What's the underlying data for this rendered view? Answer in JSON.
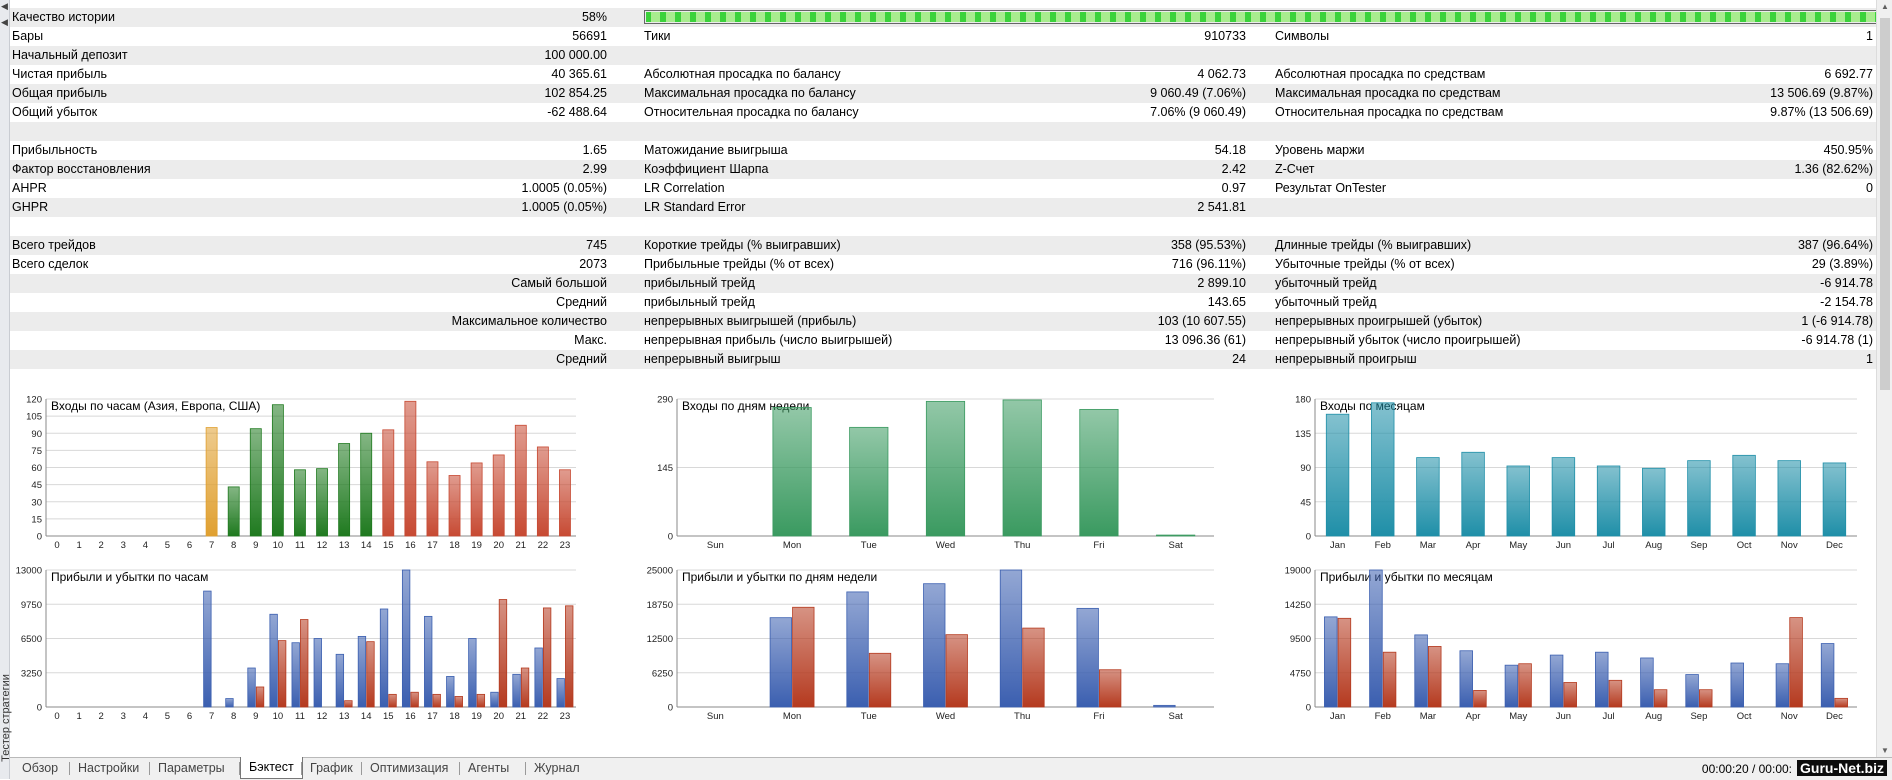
{
  "window": {
    "vertical_title": "Тестер стратегии"
  },
  "quality": {
    "label": "Качество истории",
    "value": "58%",
    "fraction": 0.58
  },
  "rows": [
    {
      "c1": [
        "Бары",
        "56691"
      ],
      "c2": [
        "Тики",
        "910733"
      ],
      "c3": [
        "Символы",
        "1"
      ]
    },
    {
      "c1": [
        "Начальный депозит",
        "100 000.00"
      ],
      "c2": [
        "",
        ""
      ],
      "c3": [
        "",
        ""
      ]
    },
    {
      "c1": [
        "Чистая прибыль",
        "40 365.61"
      ],
      "c2": [
        "Абсолютная просадка по балансу",
        "4 062.73"
      ],
      "c3": [
        "Абсолютная просадка по средствам",
        "6 692.77"
      ]
    },
    {
      "c1": [
        "Общая прибыль",
        "102 854.25"
      ],
      "c2": [
        "Максимальная просадка по балансу",
        "9 060.49 (7.06%)"
      ],
      "c3": [
        "Максимальная просадка по средствам",
        "13 506.69 (9.87%)"
      ]
    },
    {
      "c1": [
        "Общий убыток",
        "-62 488.64"
      ],
      "c2": [
        "Относительная просадка по балансу",
        "7.06% (9 060.49)"
      ],
      "c3": [
        "Относительная просадка по средствам",
        "9.87% (13 506.69)"
      ]
    },
    {
      "c1": [
        "",
        ""
      ],
      "c2": [
        "",
        ""
      ],
      "c3": [
        "",
        ""
      ]
    },
    {
      "c1": [
        "Прибыльность",
        "1.65"
      ],
      "c2": [
        "Матожидание выигрыша",
        "54.18"
      ],
      "c3": [
        "Уровень маржи",
        "450.95%"
      ]
    },
    {
      "c1": [
        "Фактор восстановления",
        "2.99"
      ],
      "c2": [
        "Коэффициент Шарпа",
        "2.42"
      ],
      "c3": [
        "Z-Счет",
        "1.36 (82.62%)"
      ]
    },
    {
      "c1": [
        "AHPR",
        "1.0005 (0.05%)"
      ],
      "c2": [
        "LR Correlation",
        "0.97"
      ],
      "c3": [
        "Результат OnTester",
        "0"
      ]
    },
    {
      "c1": [
        "GHPR",
        "1.0005 (0.05%)"
      ],
      "c2": [
        "LR Standard Error",
        "2 541.81"
      ],
      "c3": [
        "",
        ""
      ]
    },
    {
      "c1": [
        "",
        ""
      ],
      "c2": [
        "",
        ""
      ],
      "c3": [
        "",
        ""
      ]
    },
    {
      "c1": [
        "Всего трейдов",
        "745"
      ],
      "c2": [
        "Короткие трейды (% выигравших)",
        "358 (95.53%)"
      ],
      "c3": [
        "Длинные трейды (% выигравших)",
        "387 (96.64%)"
      ]
    },
    {
      "c1": [
        "Всего сделок",
        "2073"
      ],
      "c2": [
        "Прибыльные трейды (% от всех)",
        "716 (96.11%)"
      ],
      "c3": [
        "Убыточные трейды (% от всех)",
        "29 (3.89%)"
      ]
    },
    {
      "c1": [
        "",
        "Самый большой"
      ],
      "c2": [
        "прибыльный трейд",
        "2 899.10"
      ],
      "c3": [
        "убыточный трейд",
        "-6 914.78"
      ]
    },
    {
      "c1": [
        "",
        "Средний"
      ],
      "c2": [
        "прибыльный трейд",
        "143.65"
      ],
      "c3": [
        "убыточный трейд",
        "-2 154.78"
      ]
    },
    {
      "c1": [
        "",
        "Максимальное количество"
      ],
      "c2": [
        "непрерывных выигрышей (прибыль)",
        "103 (10 607.55)"
      ],
      "c3": [
        "непрерывных проигрышей (убыток)",
        "1 (-6 914.78)"
      ]
    },
    {
      "c1": [
        "",
        "Макс."
      ],
      "c2": [
        "непрерывная прибыль (число выигрышей)",
        "13 096.36 (61)"
      ],
      "c3": [
        "непрерывный убыток (число проигрышей)",
        "-6 914.78 (1)"
      ]
    },
    {
      "c1": [
        "",
        "Средний"
      ],
      "c2": [
        "непрерывный выигрыш",
        "24"
      ],
      "c3": [
        "непрерывный проигрыш",
        "1"
      ]
    },
    {
      "c1": [
        "",
        ""
      ],
      "c2": [
        "",
        ""
      ],
      "c3": [
        "",
        ""
      ]
    }
  ],
  "chart_data": [
    {
      "type": "bar",
      "title": "Входы по часам (Азия, Европа, США)",
      "categories": [
        "0",
        "1",
        "2",
        "3",
        "4",
        "5",
        "6",
        "7",
        "8",
        "9",
        "10",
        "11",
        "12",
        "13",
        "14",
        "15",
        "16",
        "17",
        "18",
        "19",
        "20",
        "21",
        "22",
        "23"
      ],
      "values": [
        0,
        0,
        0,
        0,
        0,
        0,
        0,
        95,
        43,
        94,
        115,
        58,
        59,
        81,
        90,
        93,
        118,
        65,
        53,
        64,
        71,
        97,
        78,
        58
      ],
      "yticks": [
        0,
        15,
        30,
        45,
        60,
        75,
        90,
        105,
        120
      ],
      "ylim": [
        0,
        120
      ],
      "colors": [
        "#2e8b2e",
        "#2e8b2e",
        "#2e8b2e",
        "#2e8b2e",
        "#2e8b2e",
        "#2e8b2e",
        "#2e8b2e",
        "#e0a030",
        "#1f7a1f",
        "#1f7a1f",
        "#1f7a1f",
        "#1f7a1f",
        "#1f7a1f",
        "#1f7a1f",
        "#1f7a1f",
        "#c74a33",
        "#c74a33",
        "#c74a33",
        "#c74a33",
        "#c74a33",
        "#c74a33",
        "#c74a33",
        "#c74a33",
        "#c74a33"
      ]
    },
    {
      "type": "bar",
      "title": "Входы по дням недели",
      "categories": [
        "Sun",
        "Mon",
        "Tue",
        "Wed",
        "Thu",
        "Fri",
        "Sat"
      ],
      "values": [
        0,
        272,
        230,
        285,
        288,
        268,
        2
      ],
      "yticks": [
        0,
        145,
        290
      ],
      "ylim": [
        0,
        290
      ],
      "colors": [
        "#3a9a60",
        "#3a9a60",
        "#3a9a60",
        "#3a9a60",
        "#3a9a60",
        "#3a9a60",
        "#3a9a60"
      ]
    },
    {
      "type": "bar",
      "title": "Входы по месяцам",
      "categories": [
        "Jan",
        "Feb",
        "Mar",
        "Apr",
        "May",
        "Jun",
        "Jul",
        "Aug",
        "Sep",
        "Oct",
        "Nov",
        "Dec"
      ],
      "values": [
        160,
        175,
        103,
        110,
        92,
        103,
        92,
        89,
        99,
        106,
        99,
        96
      ],
      "yticks": [
        0,
        45,
        90,
        135,
        180
      ],
      "ylim": [
        0,
        180
      ],
      "colors": [
        "#1f8fa8",
        "#1f8fa8",
        "#1f8fa8",
        "#1f8fa8",
        "#1f8fa8",
        "#1f8fa8",
        "#1f8fa8",
        "#1f8fa8",
        "#1f8fa8",
        "#1f8fa8",
        "#1f8fa8",
        "#1f8fa8"
      ]
    },
    {
      "type": "bar",
      "title": "Прибыли и убытки по часам",
      "categories": [
        "0",
        "1",
        "2",
        "3",
        "4",
        "5",
        "6",
        "7",
        "8",
        "9",
        "10",
        "11",
        "12",
        "13",
        "14",
        "15",
        "16",
        "17",
        "18",
        "19",
        "20",
        "21",
        "22",
        "23"
      ],
      "series": [
        {
          "color": "#3b5fb0",
          "values": [
            0,
            0,
            0,
            0,
            0,
            0,
            0,
            11000,
            800,
            3700,
            8800,
            6100,
            6500,
            5000,
            6700,
            9300,
            13000,
            8600,
            2900,
            6500,
            1400,
            3100,
            5600,
            2700
          ]
        },
        {
          "color": "#b53a1f",
          "values": [
            0,
            0,
            0,
            0,
            0,
            0,
            0,
            0,
            0,
            1900,
            6300,
            8300,
            0,
            600,
            6200,
            1200,
            1400,
            1200,
            1000,
            1200,
            10200,
            3700,
            9400,
            9600
          ]
        }
      ],
      "yticks": [
        0,
        3250,
        6500,
        9750,
        13000
      ],
      "ylim": [
        0,
        13000
      ]
    },
    {
      "type": "bar",
      "title": "Прибыли и убытки по дням недели",
      "categories": [
        "Sun",
        "Mon",
        "Tue",
        "Wed",
        "Thu",
        "Fri",
        "Sat"
      ],
      "series": [
        {
          "color": "#3b5fb0",
          "values": [
            0,
            16300,
            21000,
            22500,
            25000,
            18000,
            300
          ]
        },
        {
          "color": "#b53a1f",
          "values": [
            0,
            18200,
            9800,
            13200,
            14400,
            6800,
            0
          ]
        }
      ],
      "yticks": [
        0,
        6250,
        12500,
        18750,
        25000
      ],
      "ylim": [
        0,
        25000
      ]
    },
    {
      "type": "bar",
      "title": "Прибыли и убытки по месяцам",
      "categories": [
        "Jan",
        "Feb",
        "Mar",
        "Apr",
        "May",
        "Jun",
        "Jul",
        "Aug",
        "Sep",
        "Oct",
        "Nov",
        "Dec"
      ],
      "series": [
        {
          "color": "#3b5fb0",
          "values": [
            12500,
            19000,
            10000,
            7800,
            5800,
            7200,
            7600,
            6800,
            4500,
            6100,
            6000,
            8800
          ]
        },
        {
          "color": "#b53a1f",
          "values": [
            12300,
            7600,
            8400,
            2300,
            6000,
            3400,
            3700,
            2400,
            2400,
            0,
            12400,
            1200
          ]
        }
      ],
      "yticks": [
        0,
        4750,
        9500,
        14250,
        19000
      ],
      "ylim": [
        0,
        19000
      ]
    }
  ],
  "tabs": [
    "Обзор",
    "Настройки",
    "Параметры",
    "Бэктест",
    "График",
    "Оптимизация",
    "Агенты",
    "Журнал"
  ],
  "active_tab": "Бэктест",
  "status": {
    "time": "00:00:20 / 00:00:",
    "watermark": "Guru-Net.biz"
  }
}
